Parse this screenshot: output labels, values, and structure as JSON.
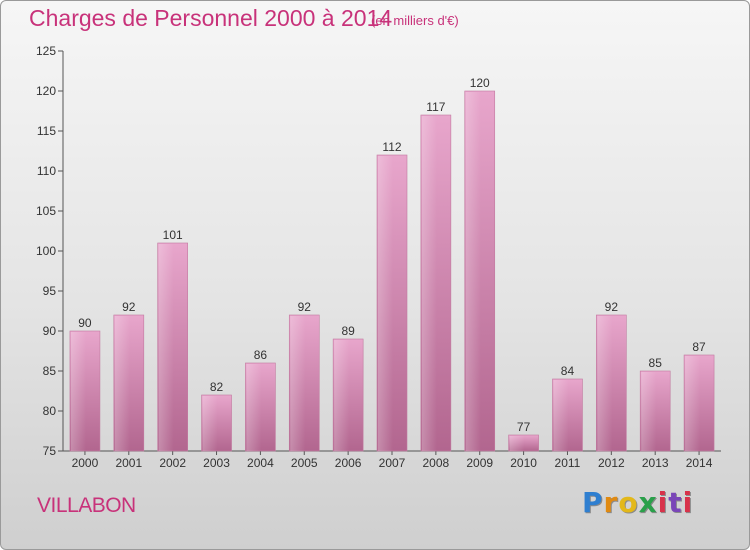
{
  "header": {
    "title": "Charges de Personnel 2000 à 2014",
    "subtitle": "(en milliers d'€)"
  },
  "footer": {
    "town": "VILLABON",
    "logo": "Proxiti"
  },
  "colors": {
    "accent": "#c8327a",
    "bar_light": "#e8a6cc",
    "bar_dark": "#b2668f"
  },
  "chart_data": {
    "type": "bar",
    "categories": [
      "2000",
      "2001",
      "2002",
      "2003",
      "2004",
      "2005",
      "2006",
      "2007",
      "2008",
      "2009",
      "2010",
      "2011",
      "2012",
      "2013",
      "2014"
    ],
    "values": [
      90,
      92,
      101,
      82,
      86,
      92,
      89,
      112,
      117,
      120,
      77,
      84,
      92,
      85,
      87
    ],
    "title": "Charges de Personnel 2000 à 2014",
    "subtitle": "(en milliers d'€)",
    "xlabel": "",
    "ylabel": "",
    "ylim": [
      75,
      125
    ],
    "yticks": [
      75,
      80,
      85,
      90,
      95,
      100,
      105,
      110,
      115,
      120,
      125
    ],
    "grid": false,
    "data_labels": true
  }
}
